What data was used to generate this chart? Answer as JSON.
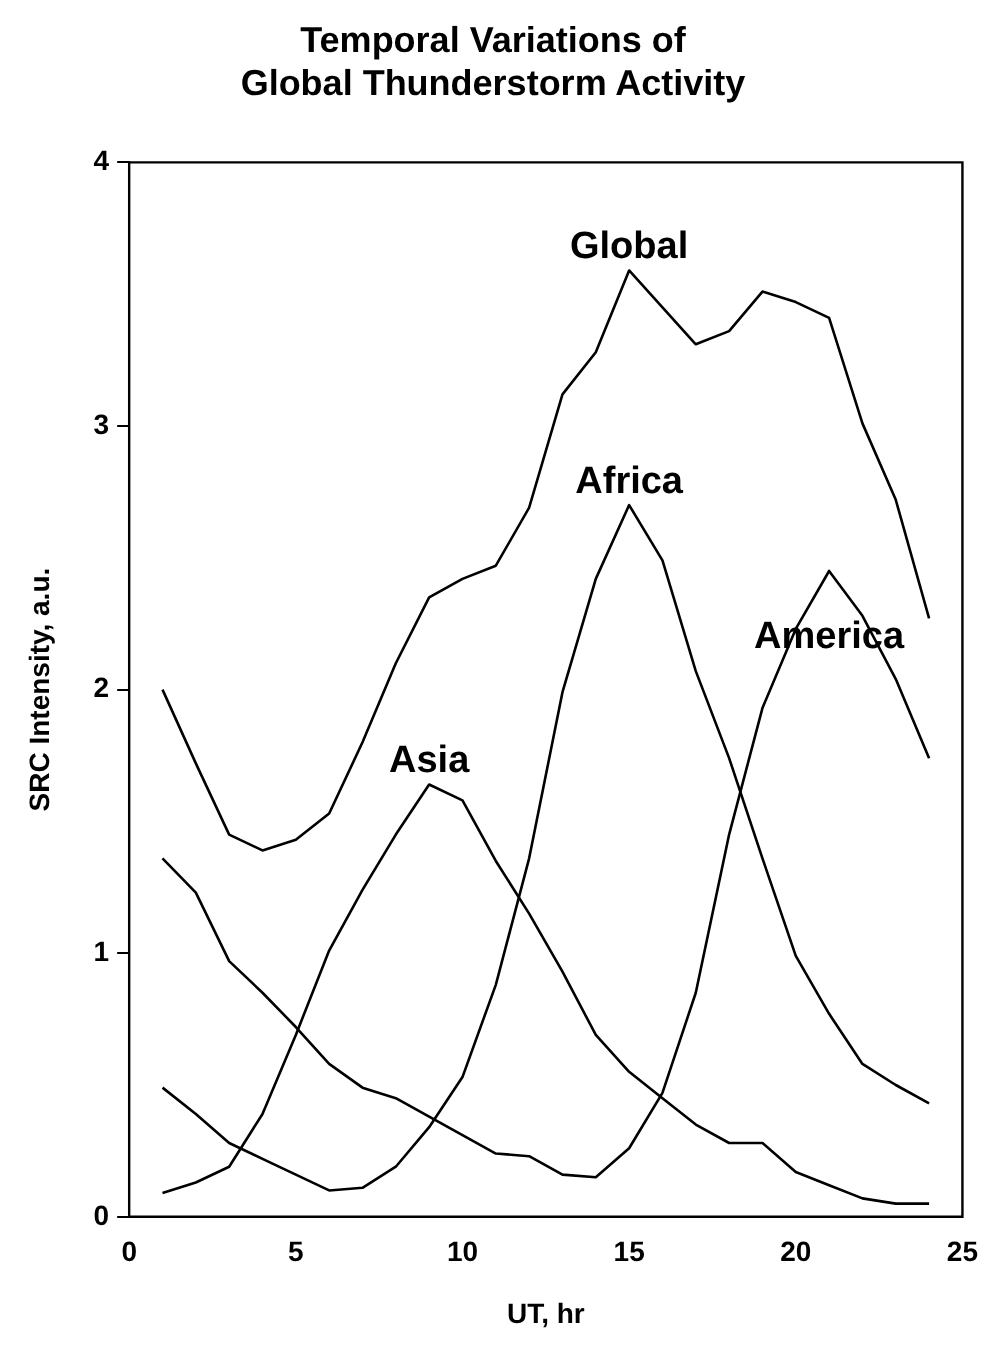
{
  "chart_data": {
    "type": "line",
    "title": [
      "Temporal Variations of",
      "Global Thunderstorm Activity"
    ],
    "xlabel": "UT, hr",
    "ylabel": "SRC Intensity, a.u.",
    "x": [
      1,
      2,
      3,
      4,
      5,
      6,
      7,
      8,
      9,
      10,
      11,
      12,
      13,
      14,
      15,
      16,
      17,
      18,
      19,
      20,
      21,
      22,
      23,
      24
    ],
    "series": [
      {
        "name": "Global",
        "color": "#000000",
        "values": [
          2.0,
          1.72,
          1.45,
          1.39,
          1.43,
          1.53,
          1.8,
          2.1,
          2.35,
          2.42,
          2.47,
          2.69,
          3.12,
          3.28,
          3.59,
          3.45,
          3.31,
          3.36,
          3.51,
          3.47,
          3.41,
          3.01,
          2.72,
          2.27
        ]
      },
      {
        "name": "Asia",
        "color": "#000000",
        "values": [
          0.09,
          0.13,
          0.19,
          0.39,
          0.69,
          1.01,
          1.24,
          1.45,
          1.64,
          1.58,
          1.35,
          1.15,
          0.93,
          0.69,
          0.55,
          0.45,
          0.35,
          0.28,
          0.28,
          0.17,
          0.12,
          0.07,
          0.05,
          0.05
        ]
      },
      {
        "name": "Africa",
        "color": "#000000",
        "values": [
          0.49,
          0.39,
          0.28,
          0.22,
          0.16,
          0.1,
          0.11,
          0.19,
          0.34,
          0.53,
          0.88,
          1.36,
          1.99,
          2.42,
          2.7,
          2.49,
          2.07,
          1.74,
          1.36,
          0.99,
          0.77,
          0.58,
          0.5,
          0.43
        ]
      },
      {
        "name": "America",
        "color": "#000000",
        "values": [
          1.36,
          1.23,
          0.97,
          0.85,
          0.72,
          0.58,
          0.49,
          0.45,
          0.38,
          0.31,
          0.24,
          0.23,
          0.16,
          0.15,
          0.26,
          0.47,
          0.85,
          1.45,
          1.93,
          2.23,
          2.45,
          2.28,
          2.04,
          1.74
        ]
      }
    ],
    "xlim": [
      0,
      25
    ],
    "xticks": [
      0,
      5,
      10,
      15,
      20,
      25
    ],
    "ylim": [
      0,
      4
    ],
    "yticks": [
      0,
      1,
      2,
      3,
      4
    ],
    "grid": false,
    "legend": false,
    "marker": "none",
    "line_style": "solid"
  }
}
